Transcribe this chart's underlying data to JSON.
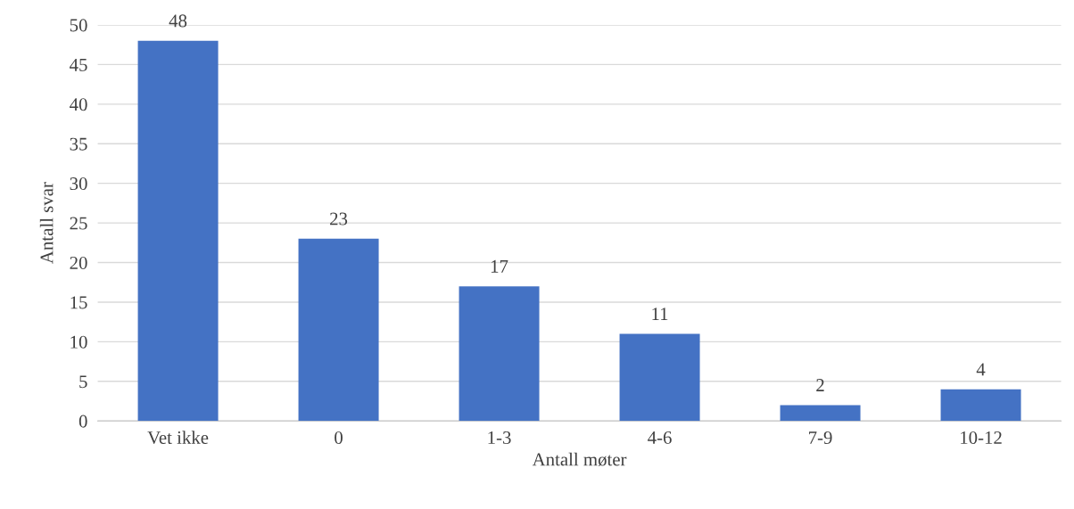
{
  "chart_data": {
    "type": "bar",
    "xlabel": "Antall møter",
    "ylabel": "Antall svar",
    "categories": [
      "Vet ikke",
      "0",
      "1-3",
      "4-6",
      "7-9",
      "10-12"
    ],
    "values": [
      48,
      23,
      17,
      11,
      2,
      4
    ],
    "color": "#4472c4",
    "ylim": [
      0,
      50
    ],
    "yticks": [
      0,
      5,
      10,
      15,
      20,
      25,
      30,
      35,
      40,
      45,
      50
    ],
    "grid": "y",
    "data_labels": true
  }
}
